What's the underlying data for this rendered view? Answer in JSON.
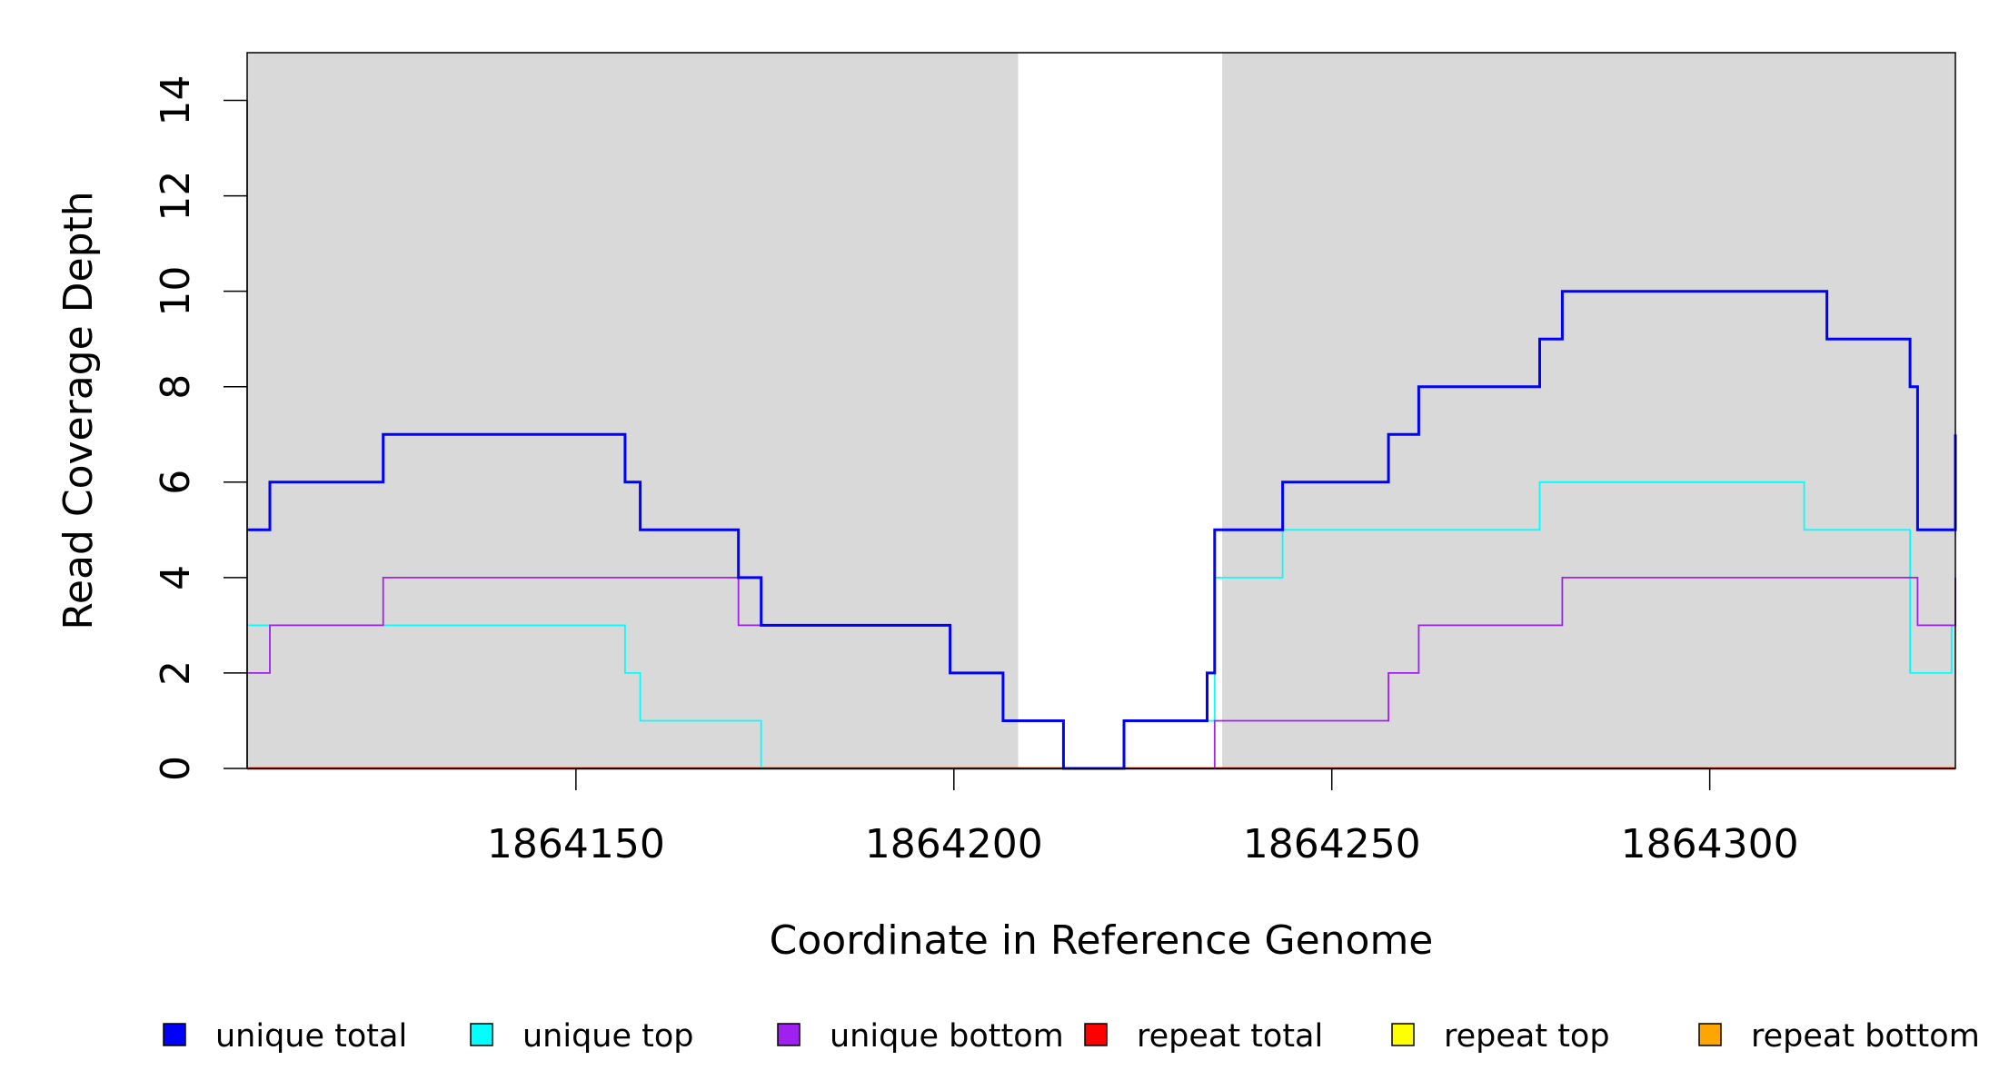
{
  "chart_data": {
    "type": "line",
    "xlabel": "Coordinate in Reference Genome",
    "ylabel": "Read Coverage Depth",
    "xlim": [
      1864106.5,
      1864332.5
    ],
    "ylim": [
      0,
      15
    ],
    "x_ticks": [
      1864150,
      1864200,
      1864250,
      1864300
    ],
    "y_ticks": [
      0,
      2,
      4,
      6,
      8,
      10,
      12,
      14
    ],
    "background_color": "#d9d9d9",
    "unshaded_region": [
      1864208.5,
      1864235.5
    ],
    "grid": false,
    "legend_position": "bottom",
    "series": [
      {
        "name": "unique total",
        "color": "#0000ff",
        "steps": [
          [
            1864106.5,
            5
          ],
          [
            1864109.5,
            6
          ],
          [
            1864124.5,
            7
          ],
          [
            1864156.5,
            6
          ],
          [
            1864158.5,
            5
          ],
          [
            1864171.5,
            4
          ],
          [
            1864174.5,
            3
          ],
          [
            1864199.5,
            2
          ],
          [
            1864206.5,
            1
          ],
          [
            1864214.5,
            0
          ],
          [
            1864222.5,
            1
          ],
          [
            1864233.5,
            2
          ],
          [
            1864234.5,
            5
          ],
          [
            1864243.5,
            6
          ],
          [
            1864257.5,
            7
          ],
          [
            1864261.5,
            8
          ],
          [
            1864277.5,
            9
          ],
          [
            1864280.5,
            10
          ],
          [
            1864315.5,
            9
          ],
          [
            1864326.5,
            8
          ],
          [
            1864327.5,
            5
          ],
          [
            1864333.0,
            7
          ]
        ]
      },
      {
        "name": "unique top",
        "color": "#00ffff",
        "steps": [
          [
            1864106.5,
            3
          ],
          [
            1864156.5,
            2
          ],
          [
            1864158.5,
            1
          ],
          [
            1864174.5,
            0
          ],
          [
            1864222.5,
            1
          ],
          [
            1864234.5,
            4
          ],
          [
            1864243.5,
            5
          ],
          [
            1864277.5,
            6
          ],
          [
            1864312.5,
            5
          ],
          [
            1864326.5,
            2
          ],
          [
            1864332.0,
            3
          ]
        ]
      },
      {
        "name": "unique bottom",
        "color": "#a020f0",
        "steps": [
          [
            1864106.5,
            2
          ],
          [
            1864109.5,
            3
          ],
          [
            1864124.5,
            4
          ],
          [
            1864171.5,
            3
          ],
          [
            1864199.5,
            2
          ],
          [
            1864206.5,
            1
          ],
          [
            1864214.5,
            0
          ],
          [
            1864234.5,
            1
          ],
          [
            1864257.5,
            2
          ],
          [
            1864261.5,
            3
          ],
          [
            1864280.5,
            4
          ],
          [
            1864327.5,
            3
          ],
          [
            1864332.5,
            4
          ]
        ]
      },
      {
        "name": "repeat total",
        "color": "#ff0000",
        "steps": [
          [
            1864106.5,
            0
          ]
        ]
      },
      {
        "name": "repeat top",
        "color": "#ffff00",
        "steps": [
          [
            1864106.5,
            0
          ]
        ]
      },
      {
        "name": "repeat bottom",
        "color": "#ffa500",
        "steps": [
          [
            1864106.5,
            0
          ]
        ]
      }
    ]
  }
}
